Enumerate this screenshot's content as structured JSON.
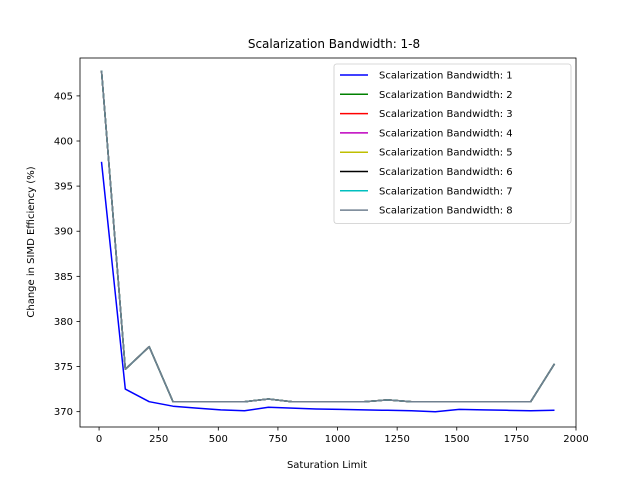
{
  "chart_data": {
    "type": "line",
    "title": "Scalarization Bandwidth: 1-8",
    "xlabel": "Saturation Limit",
    "ylabel": "Change in SIMD Efficiency (%)",
    "xlim": [
      -80,
      2000
    ],
    "ylim": [
      368.3,
      409.2
    ],
    "xticks": [
      0,
      250,
      500,
      750,
      1000,
      1250,
      1500,
      1750,
      2000
    ],
    "yticks": [
      370,
      375,
      380,
      385,
      390,
      395,
      400,
      405
    ],
    "grid": false,
    "legend_position": "top-right",
    "x": [
      10,
      110,
      210,
      310,
      410,
      510,
      610,
      710,
      810,
      910,
      1010,
      1110,
      1210,
      1310,
      1410,
      1510,
      1610,
      1710,
      1810,
      1910
    ],
    "series": [
      {
        "name": "Scalarization Bandwidth: 1",
        "color": "#0000ff",
        "values": [
          397.7,
          372.5,
          371.1,
          370.6,
          370.4,
          370.2,
          370.1,
          370.5,
          370.4,
          370.3,
          370.25,
          370.2,
          370.15,
          370.1,
          370.0,
          370.25,
          370.2,
          370.15,
          370.1,
          370.15
        ]
      },
      {
        "name": "Scalarization Bandwidth: 2",
        "color": "#008000",
        "values": [
          407.8,
          374.7,
          377.2,
          371.1,
          371.1,
          371.1,
          371.1,
          371.4,
          371.1,
          371.1,
          371.1,
          371.1,
          371.3,
          371.1,
          371.1,
          371.1,
          371.1,
          371.1,
          371.1,
          375.3
        ]
      },
      {
        "name": "Scalarization Bandwidth: 3",
        "color": "#ff0000",
        "values": [
          407.8,
          374.7,
          377.2,
          371.1,
          371.1,
          371.1,
          371.1,
          371.4,
          371.1,
          371.1,
          371.1,
          371.1,
          371.3,
          371.1,
          371.1,
          371.1,
          371.1,
          371.1,
          371.1,
          375.3
        ]
      },
      {
        "name": "Scalarization Bandwidth: 4",
        "color": "#bf00bf",
        "values": [
          407.8,
          374.7,
          377.2,
          371.1,
          371.1,
          371.1,
          371.1,
          371.4,
          371.1,
          371.1,
          371.1,
          371.1,
          371.3,
          371.1,
          371.1,
          371.1,
          371.1,
          371.1,
          371.1,
          375.3
        ]
      },
      {
        "name": "Scalarization Bandwidth: 5",
        "color": "#bfbf00",
        "values": [
          407.8,
          374.7,
          377.2,
          371.1,
          371.1,
          371.1,
          371.1,
          371.4,
          371.1,
          371.1,
          371.1,
          371.1,
          371.3,
          371.1,
          371.1,
          371.1,
          371.1,
          371.1,
          371.1,
          375.3
        ]
      },
      {
        "name": "Scalarization Bandwidth: 6",
        "color": "#000000",
        "values": [
          407.8,
          374.7,
          377.2,
          371.1,
          371.1,
          371.1,
          371.1,
          371.4,
          371.1,
          371.1,
          371.1,
          371.1,
          371.3,
          371.1,
          371.1,
          371.1,
          371.1,
          371.1,
          371.1,
          375.3
        ]
      },
      {
        "name": "Scalarization Bandwidth: 7",
        "color": "#00bfbf",
        "values": [
          407.8,
          374.7,
          377.2,
          371.1,
          371.1,
          371.1,
          371.1,
          371.4,
          371.1,
          371.1,
          371.1,
          371.1,
          371.3,
          371.1,
          371.1,
          371.1,
          371.1,
          371.1,
          371.1,
          375.3
        ]
      },
      {
        "name": "Scalarization Bandwidth: 8",
        "color": "#708090",
        "values": [
          407.8,
          374.7,
          377.2,
          371.1,
          371.1,
          371.1,
          371.1,
          371.4,
          371.1,
          371.1,
          371.1,
          371.1,
          371.3,
          371.1,
          371.1,
          371.1,
          371.1,
          371.1,
          371.1,
          375.3
        ]
      }
    ]
  }
}
